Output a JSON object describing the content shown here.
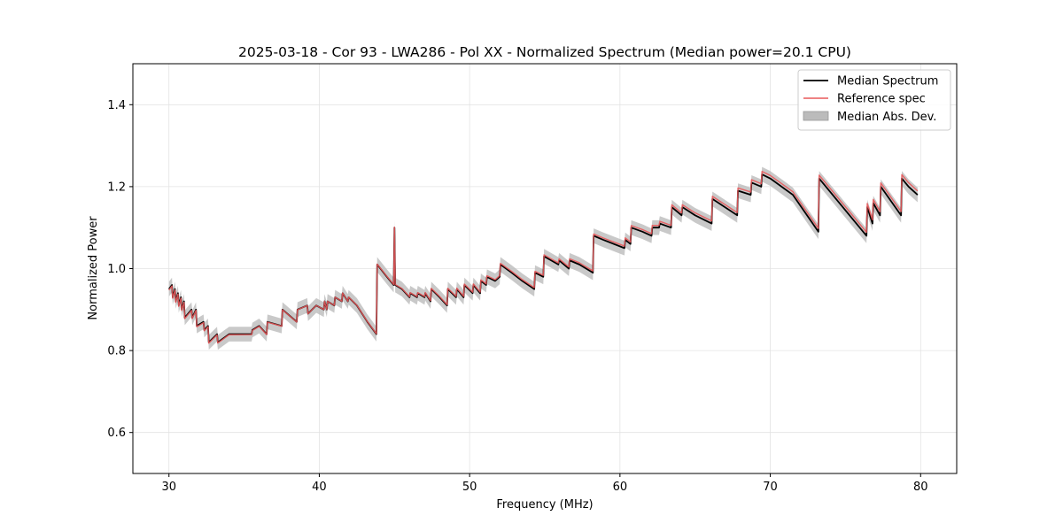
{
  "chart_data": {
    "type": "line",
    "title": "2025-03-18 - Cor 93 - LWA286 - Pol XX - Normalized Spectrum (Median power=20.1 CPU)",
    "xlabel": "Frequency (MHz)",
    "ylabel": "Normalized Power",
    "xlim": [
      27.6,
      82.4
    ],
    "ylim": [
      0.5,
      1.5
    ],
    "xticks": [
      30,
      40,
      50,
      60,
      70,
      80
    ],
    "yticks": [
      0.6,
      0.8,
      1.0,
      1.2,
      1.4
    ],
    "xtick_labels": [
      "30",
      "40",
      "50",
      "60",
      "70",
      "80"
    ],
    "ytick_labels": [
      "0.6",
      "0.8",
      "1.0",
      "1.2",
      "1.4"
    ],
    "grid": true,
    "legend_position": "top-right",
    "mad_halfwidth": 0.018,
    "series": [
      {
        "name": "Median Spectrum",
        "color": "#000000",
        "points": [
          [
            30.0,
            0.95
          ],
          [
            30.2,
            0.96
          ],
          [
            30.25,
            0.93
          ],
          [
            30.4,
            0.95
          ],
          [
            30.45,
            0.92
          ],
          [
            30.6,
            0.94
          ],
          [
            30.65,
            0.91
          ],
          [
            30.8,
            0.93
          ],
          [
            30.85,
            0.9
          ],
          [
            31.0,
            0.92
          ],
          [
            31.05,
            0.88
          ],
          [
            31.5,
            0.9
          ],
          [
            31.55,
            0.88
          ],
          [
            31.8,
            0.9
          ],
          [
            31.85,
            0.86
          ],
          [
            32.3,
            0.87
          ],
          [
            32.35,
            0.85
          ],
          [
            32.6,
            0.86
          ],
          [
            32.65,
            0.82
          ],
          [
            33.2,
            0.84
          ],
          [
            33.25,
            0.82
          ],
          [
            34.0,
            0.84
          ],
          [
            35.5,
            0.84
          ],
          [
            35.55,
            0.85
          ],
          [
            36.0,
            0.86
          ],
          [
            36.5,
            0.84
          ],
          [
            36.55,
            0.87
          ],
          [
            37.5,
            0.86
          ],
          [
            37.55,
            0.9
          ],
          [
            38.5,
            0.87
          ],
          [
            38.55,
            0.9
          ],
          [
            39.2,
            0.91
          ],
          [
            39.25,
            0.89
          ],
          [
            39.8,
            0.91
          ],
          [
            40.3,
            0.9
          ],
          [
            40.35,
            0.92
          ],
          [
            40.5,
            0.9
          ],
          [
            40.55,
            0.92
          ],
          [
            41.0,
            0.91
          ],
          [
            41.05,
            0.93
          ],
          [
            41.5,
            0.92
          ],
          [
            41.55,
            0.94
          ],
          [
            41.9,
            0.92
          ],
          [
            41.95,
            0.93
          ],
          [
            42.5,
            0.91
          ],
          [
            43.2,
            0.87
          ],
          [
            43.8,
            0.84
          ],
          [
            43.85,
            1.01
          ],
          [
            44.5,
            0.98
          ],
          [
            44.95,
            0.96
          ],
          [
            45.0,
            1.1
          ],
          [
            45.05,
            0.96
          ],
          [
            45.5,
            0.95
          ],
          [
            46.0,
            0.93
          ],
          [
            46.05,
            0.94
          ],
          [
            46.5,
            0.93
          ],
          [
            46.55,
            0.94
          ],
          [
            47.0,
            0.93
          ],
          [
            47.05,
            0.94
          ],
          [
            47.4,
            0.92
          ],
          [
            47.45,
            0.95
          ],
          [
            48.0,
            0.93
          ],
          [
            48.5,
            0.91
          ],
          [
            48.55,
            0.95
          ],
          [
            49.1,
            0.93
          ],
          [
            49.15,
            0.95
          ],
          [
            49.6,
            0.93
          ],
          [
            49.65,
            0.96
          ],
          [
            50.2,
            0.94
          ],
          [
            50.25,
            0.96
          ],
          [
            50.7,
            0.94
          ],
          [
            50.75,
            0.97
          ],
          [
            51.1,
            0.96
          ],
          [
            51.15,
            0.98
          ],
          [
            51.7,
            0.97
          ],
          [
            52.0,
            0.98
          ],
          [
            52.05,
            1.01
          ],
          [
            52.8,
            0.99
          ],
          [
            53.5,
            0.97
          ],
          [
            54.3,
            0.95
          ],
          [
            54.35,
            0.99
          ],
          [
            54.9,
            0.98
          ],
          [
            54.95,
            1.03
          ],
          [
            55.9,
            1.01
          ],
          [
            55.95,
            1.02
          ],
          [
            56.6,
            1.0
          ],
          [
            56.65,
            1.02
          ],
          [
            57.3,
            1.01
          ],
          [
            58.2,
            0.99
          ],
          [
            58.25,
            1.08
          ],
          [
            58.9,
            1.07
          ],
          [
            60.3,
            1.05
          ],
          [
            60.35,
            1.07
          ],
          [
            60.7,
            1.06
          ],
          [
            60.75,
            1.1
          ],
          [
            61.5,
            1.09
          ],
          [
            62.1,
            1.08
          ],
          [
            62.15,
            1.1
          ],
          [
            62.6,
            1.1
          ],
          [
            62.65,
            1.11
          ],
          [
            63.4,
            1.1
          ],
          [
            63.45,
            1.15
          ],
          [
            64.1,
            1.13
          ],
          [
            64.15,
            1.15
          ],
          [
            65.0,
            1.13
          ],
          [
            66.1,
            1.11
          ],
          [
            66.15,
            1.17
          ],
          [
            67.8,
            1.13
          ],
          [
            67.85,
            1.19
          ],
          [
            68.7,
            1.18
          ],
          [
            68.75,
            1.21
          ],
          [
            69.4,
            1.2
          ],
          [
            69.45,
            1.23
          ],
          [
            70.0,
            1.22
          ],
          [
            71.5,
            1.18
          ],
          [
            73.2,
            1.09
          ],
          [
            73.25,
            1.22
          ],
          [
            76.4,
            1.08
          ],
          [
            76.45,
            1.15
          ],
          [
            76.8,
            1.11
          ],
          [
            76.85,
            1.16
          ],
          [
            77.3,
            1.13
          ],
          [
            77.35,
            1.2
          ],
          [
            78.7,
            1.13
          ],
          [
            78.75,
            1.22
          ],
          [
            79.2,
            1.2
          ],
          [
            79.8,
            1.18
          ]
        ]
      },
      {
        "name": "Reference spec",
        "color": "#e8585a",
        "offset": 0.006
      },
      {
        "name": "Median Abs. Dev.",
        "color": "#bbbbbb",
        "kind": "band"
      }
    ]
  }
}
